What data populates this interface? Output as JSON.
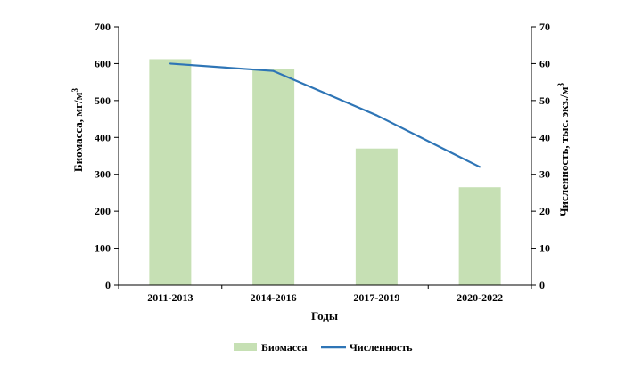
{
  "chart_data": {
    "type": "bar",
    "categories": [
      "2011-2013",
      "2014-2016",
      "2017-2019",
      "2020-2022"
    ],
    "series": [
      {
        "name": "Биомасса",
        "type": "bar",
        "axis": "left",
        "color": "#c6e0b4",
        "values": [
          612,
          585,
          370,
          265
        ]
      },
      {
        "name": "Численность",
        "type": "line",
        "axis": "right",
        "color": "#2e75b6",
        "values": [
          60,
          58,
          46,
          32
        ]
      }
    ],
    "xlabel": "Годы",
    "ylabel_left_main": "Биомасса, мг/м",
    "ylabel_left_sup": "3",
    "ylabel_right_main": "Численность, тыс. экз./м",
    "ylabel_right_sup": "3",
    "ylim_left": [
      0,
      700
    ],
    "ylim_right": [
      0,
      70
    ],
    "yticks_left": [
      "0",
      "100",
      "200",
      "300",
      "400",
      "500",
      "600",
      "700"
    ],
    "yticks_right": [
      "0",
      "10",
      "20",
      "30",
      "40",
      "50",
      "60",
      "70"
    ],
    "grid": false,
    "legend_position": "bottom"
  }
}
